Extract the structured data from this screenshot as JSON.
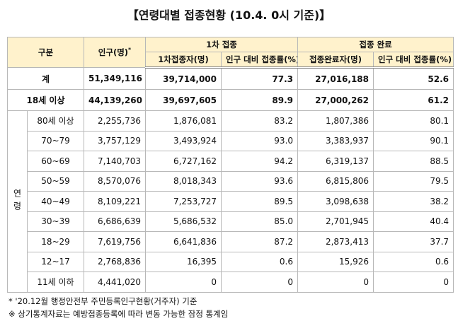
{
  "header": {
    "title": "【연령대별 접종현황 (10.4. 0시 기준)】"
  },
  "table": {
    "head": {
      "category": "구분",
      "population": "인구(명)",
      "population_mark": "*",
      "first_dose": "1차 접종",
      "complete": "접종 완료",
      "first_count": "1차접종자(명)",
      "first_rate": "인구 대비 접종률(%)",
      "complete_count": "접종완료자(명)",
      "complete_rate": "인구 대비 접종률(%)"
    },
    "summary_rows": [
      [
        "계",
        "51,349,116",
        "39,714,000",
        "77.3",
        "27,016,188",
        "52.6"
      ],
      [
        "18세 이상",
        "44,139,260",
        "39,697,605",
        "89.9",
        "27,000,262",
        "61.2"
      ]
    ],
    "group_label": "연령",
    "rows": [
      [
        "80세 이상",
        "2,255,736",
        "1,876,081",
        "83.2",
        "1,807,386",
        "80.1"
      ],
      [
        "70~79",
        "3,757,129",
        "3,493,924",
        "93.0",
        "3,383,937",
        "90.1"
      ],
      [
        "60~69",
        "7,140,703",
        "6,727,162",
        "94.2",
        "6,319,137",
        "88.5"
      ],
      [
        "50~59",
        "8,570,076",
        "8,018,343",
        "93.6",
        "6,815,806",
        "79.5"
      ],
      [
        "40~49",
        "8,109,221",
        "7,253,727",
        "89.5",
        "3,098,638",
        "38.2"
      ],
      [
        "30~39",
        "6,686,639",
        "5,686,532",
        "85.0",
        "2,701,945",
        "40.4"
      ],
      [
        "18~29",
        "7,619,756",
        "6,641,836",
        "87.2",
        "2,873,413",
        "37.7"
      ],
      [
        "12~17",
        "2,768,836",
        "16,395",
        "0.6",
        "15,926",
        "0.6"
      ],
      [
        "11세 이하",
        "4,441,020",
        "0",
        "0",
        "0",
        "0"
      ]
    ]
  },
  "footnotes": [
    "* '20.12월 행정안전부 주민등록인구현황(거주자) 기준",
    "※ 상기통계자료는 예방접종등록에 따라 변동 가능한 잠정 통계임"
  ]
}
